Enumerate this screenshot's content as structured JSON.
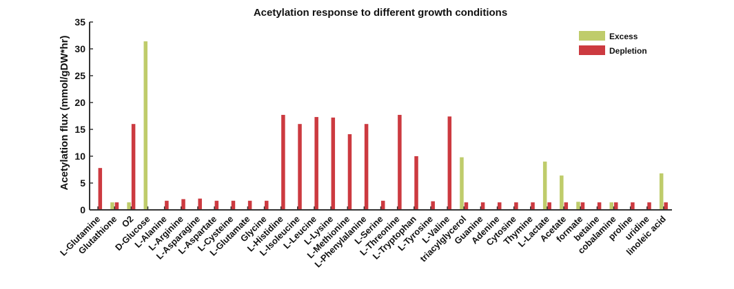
{
  "chart_data": {
    "type": "bar",
    "title": "Acetylation response to different growth conditions",
    "xlabel": "",
    "ylabel": "Acetylation flux (mmol/gDW*hr)",
    "ylim": [
      0,
      35
    ],
    "yticks": [
      0,
      5,
      10,
      15,
      20,
      25,
      30,
      35
    ],
    "grid": false,
    "legend_position": "top-right",
    "categories": [
      "L-Glutamine",
      "Glutathione",
      "O2",
      "D-Glucose",
      "L-Alanine",
      "L-Arginine",
      "L-Asparagine",
      "L-Aspartate",
      "L-Cysteine",
      "L-Glutamate",
      "Glycine",
      "L-Histidine",
      "L-Isoleucine",
      "L-Leucine",
      "L-Lysine",
      "L-Methionine",
      "L-Phenylalanine",
      "L-Serine",
      "L-Threonine",
      "L-Tryptophan",
      "L-Tyrosine",
      "L-Valine",
      "triacylglycerol",
      "Guanine",
      "Adenine",
      "Cytosine",
      "Thymine",
      "L-Lactate",
      "Acetate",
      "formate",
      "betaine",
      "cobalamine",
      "proline",
      "uridine",
      "linoleic acid"
    ],
    "series": [
      {
        "name": "Excess",
        "color": "#bfcc6b",
        "values": [
          0,
          1.4,
          1.4,
          31.4,
          0,
          0,
          0,
          0,
          0,
          0,
          0,
          0,
          0,
          0,
          0,
          0,
          0,
          0,
          0,
          0,
          0,
          0,
          9.8,
          0,
          0,
          0,
          0,
          9.0,
          6.4,
          1.5,
          0,
          1.4,
          0,
          0,
          6.8
        ]
      },
      {
        "name": "Depletion",
        "color": "#cc3a40",
        "values": [
          7.8,
          1.4,
          16.0,
          0,
          1.7,
          2.0,
          2.1,
          1.7,
          1.7,
          1.7,
          1.7,
          17.7,
          16.0,
          17.3,
          17.2,
          14.1,
          16.0,
          1.7,
          17.7,
          10.0,
          1.6,
          17.4,
          1.4,
          1.4,
          1.4,
          1.4,
          1.4,
          1.4,
          1.4,
          1.4,
          1.4,
          1.4,
          1.4,
          1.4,
          1.4
        ]
      }
    ]
  }
}
